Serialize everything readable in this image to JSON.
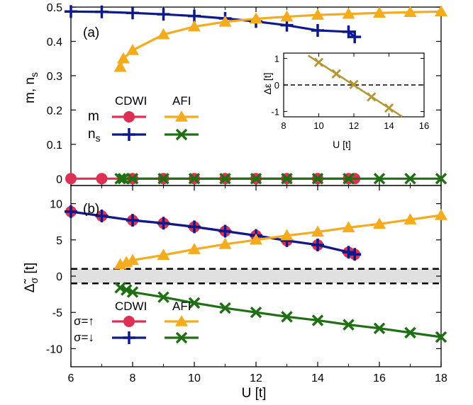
{
  "colors": {
    "cdwi_up": "#dc3154",
    "cdwi_down": "#0d1a8a",
    "afi_up": "#f5ab1e",
    "afi_down": "#1f6f13",
    "inset": "#b59634",
    "gap_band": "#e0e0e0"
  },
  "chart_data": [
    {
      "type": "line",
      "panel_label": "(a)",
      "xlabel": "",
      "ylabel": "m, n_s",
      "xlim": [
        6,
        18
      ],
      "ylim": [
        -0.02,
        0.5
      ],
      "yticks": [
        "0",
        "0.1",
        "0.2",
        "0.3",
        "0.4",
        "0.5"
      ],
      "legend": {
        "header_left": "CDWI",
        "header_right": "AFI",
        "row1": "m",
        "row2": "n",
        "row2_sub": "s"
      },
      "series": [
        {
          "name": "CDWI m",
          "marker": "circle",
          "x": [
            6,
            7,
            8,
            9,
            10,
            11,
            12,
            13,
            14,
            15,
            15.2
          ],
          "y": [
            0,
            0,
            0,
            0,
            0,
            0,
            0,
            0,
            0,
            0,
            0
          ]
        },
        {
          "name": "CDWI n_s",
          "marker": "plus",
          "x": [
            6,
            7,
            8,
            9,
            10,
            11,
            12,
            13,
            14,
            15,
            15.2
          ],
          "y": [
            0.487,
            0.486,
            0.483,
            0.479,
            0.474,
            0.467,
            0.458,
            0.447,
            0.432,
            0.428,
            0.413
          ]
        },
        {
          "name": "AFI m",
          "marker": "triangle",
          "x": [
            7.6,
            7.7,
            8,
            9,
            10,
            11,
            12,
            13,
            14,
            15,
            16,
            17,
            18
          ],
          "y": [
            0.325,
            0.35,
            0.374,
            0.42,
            0.443,
            0.457,
            0.466,
            0.472,
            0.477,
            0.48,
            0.483,
            0.485,
            0.487
          ]
        },
        {
          "name": "AFI n_s",
          "marker": "cross",
          "x": [
            7.6,
            7.7,
            8,
            9,
            10,
            11,
            12,
            13,
            14,
            15,
            16,
            17,
            18
          ],
          "y": [
            0,
            0,
            0,
            0,
            0,
            0,
            0,
            0,
            0,
            0,
            0,
            0,
            0
          ]
        }
      ],
      "inset": {
        "xlabel": "U [t]",
        "ylabel": "Δε [t]",
        "xlim": [
          8,
          16
        ],
        "ylim": [
          -1.2,
          1.2
        ],
        "xticks": [
          "8",
          "10",
          "12",
          "14",
          "16"
        ],
        "yticks": [
          "-1",
          "0",
          "1"
        ],
        "x": [
          10,
          11,
          12,
          13,
          14
        ],
        "y": [
          0.85,
          0.42,
          0.02,
          -0.45,
          -0.87
        ]
      }
    },
    {
      "type": "line",
      "panel_label": "(b)",
      "xlabel": "U [t]",
      "ylabel": "Δ_σ [t]",
      "xlim": [
        6,
        18
      ],
      "ylim": [
        -12.5,
        12.5
      ],
      "xticks": [
        "6",
        "8",
        "10",
        "12",
        "14",
        "16",
        "18"
      ],
      "yticks": [
        "-10",
        "-5",
        "0",
        "5",
        "10"
      ],
      "gap_band": [
        -1,
        1
      ],
      "legend": {
        "header_left": "CDWI",
        "header_right": "AFI",
        "row1": "σ=↑",
        "row2": "σ=↓"
      },
      "series": [
        {
          "name": "CDWI σ=↑",
          "marker": "circle",
          "x": [
            6,
            7,
            8,
            9,
            10,
            11,
            12,
            13,
            14,
            15,
            15.2
          ],
          "y": [
            8.9,
            8.3,
            7.7,
            7.3,
            6.8,
            6.2,
            5.6,
            4.9,
            4.3,
            3.3,
            3.0
          ]
        },
        {
          "name": "CDWI σ=↓",
          "marker": "plus",
          "x": [
            6,
            7,
            8,
            9,
            10,
            11,
            12,
            13,
            14,
            15,
            15.2
          ],
          "y": [
            8.9,
            8.3,
            7.7,
            7.3,
            6.8,
            6.2,
            5.6,
            4.9,
            4.3,
            3.3,
            3.0
          ]
        },
        {
          "name": "AFI σ=↑",
          "marker": "triangle",
          "x": [
            7.6,
            7.8,
            8,
            9,
            10,
            11,
            12,
            13,
            14,
            15,
            16,
            17,
            18
          ],
          "y": [
            1.6,
            1.9,
            2.2,
            2.9,
            3.7,
            4.4,
            5.0,
            5.6,
            6.1,
            6.7,
            7.2,
            7.8,
            8.4
          ]
        },
        {
          "name": "AFI σ=↓",
          "marker": "cross",
          "x": [
            7.6,
            7.8,
            8,
            9,
            10,
            11,
            12,
            13,
            14,
            15,
            16,
            17,
            18
          ],
          "y": [
            -1.6,
            -1.9,
            -2.2,
            -2.9,
            -3.7,
            -4.4,
            -5.0,
            -5.6,
            -6.1,
            -6.7,
            -7.2,
            -7.8,
            -8.4
          ]
        }
      ]
    }
  ]
}
